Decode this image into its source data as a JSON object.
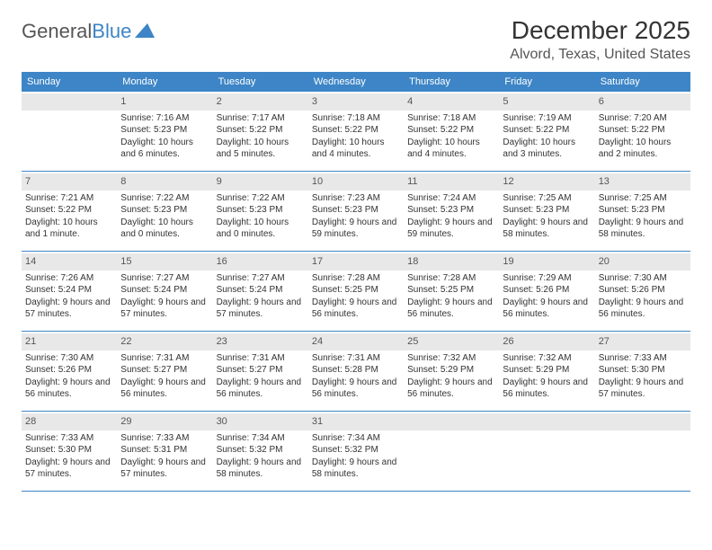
{
  "logo": {
    "text1": "General",
    "text2": "Blue"
  },
  "title": "December 2025",
  "location": "Alvord, Texas, United States",
  "colors": {
    "header_bg": "#3d85c6",
    "header_text": "#ffffff",
    "daynum_bg": "#e8e8e8",
    "border": "#3d85c6",
    "text": "#333333"
  },
  "weekdays": [
    "Sunday",
    "Monday",
    "Tuesday",
    "Wednesday",
    "Thursday",
    "Friday",
    "Saturday"
  ],
  "weeks": [
    [
      {
        "n": "",
        "sr": "",
        "ss": "",
        "dl": ""
      },
      {
        "n": "1",
        "sr": "Sunrise: 7:16 AM",
        "ss": "Sunset: 5:23 PM",
        "dl": "Daylight: 10 hours and 6 minutes."
      },
      {
        "n": "2",
        "sr": "Sunrise: 7:17 AM",
        "ss": "Sunset: 5:22 PM",
        "dl": "Daylight: 10 hours and 5 minutes."
      },
      {
        "n": "3",
        "sr": "Sunrise: 7:18 AM",
        "ss": "Sunset: 5:22 PM",
        "dl": "Daylight: 10 hours and 4 minutes."
      },
      {
        "n": "4",
        "sr": "Sunrise: 7:18 AM",
        "ss": "Sunset: 5:22 PM",
        "dl": "Daylight: 10 hours and 4 minutes."
      },
      {
        "n": "5",
        "sr": "Sunrise: 7:19 AM",
        "ss": "Sunset: 5:22 PM",
        "dl": "Daylight: 10 hours and 3 minutes."
      },
      {
        "n": "6",
        "sr": "Sunrise: 7:20 AM",
        "ss": "Sunset: 5:22 PM",
        "dl": "Daylight: 10 hours and 2 minutes."
      }
    ],
    [
      {
        "n": "7",
        "sr": "Sunrise: 7:21 AM",
        "ss": "Sunset: 5:22 PM",
        "dl": "Daylight: 10 hours and 1 minute."
      },
      {
        "n": "8",
        "sr": "Sunrise: 7:22 AM",
        "ss": "Sunset: 5:23 PM",
        "dl": "Daylight: 10 hours and 0 minutes."
      },
      {
        "n": "9",
        "sr": "Sunrise: 7:22 AM",
        "ss": "Sunset: 5:23 PM",
        "dl": "Daylight: 10 hours and 0 minutes."
      },
      {
        "n": "10",
        "sr": "Sunrise: 7:23 AM",
        "ss": "Sunset: 5:23 PM",
        "dl": "Daylight: 9 hours and 59 minutes."
      },
      {
        "n": "11",
        "sr": "Sunrise: 7:24 AM",
        "ss": "Sunset: 5:23 PM",
        "dl": "Daylight: 9 hours and 59 minutes."
      },
      {
        "n": "12",
        "sr": "Sunrise: 7:25 AM",
        "ss": "Sunset: 5:23 PM",
        "dl": "Daylight: 9 hours and 58 minutes."
      },
      {
        "n": "13",
        "sr": "Sunrise: 7:25 AM",
        "ss": "Sunset: 5:23 PM",
        "dl": "Daylight: 9 hours and 58 minutes."
      }
    ],
    [
      {
        "n": "14",
        "sr": "Sunrise: 7:26 AM",
        "ss": "Sunset: 5:24 PM",
        "dl": "Daylight: 9 hours and 57 minutes."
      },
      {
        "n": "15",
        "sr": "Sunrise: 7:27 AM",
        "ss": "Sunset: 5:24 PM",
        "dl": "Daylight: 9 hours and 57 minutes."
      },
      {
        "n": "16",
        "sr": "Sunrise: 7:27 AM",
        "ss": "Sunset: 5:24 PM",
        "dl": "Daylight: 9 hours and 57 minutes."
      },
      {
        "n": "17",
        "sr": "Sunrise: 7:28 AM",
        "ss": "Sunset: 5:25 PM",
        "dl": "Daylight: 9 hours and 56 minutes."
      },
      {
        "n": "18",
        "sr": "Sunrise: 7:28 AM",
        "ss": "Sunset: 5:25 PM",
        "dl": "Daylight: 9 hours and 56 minutes."
      },
      {
        "n": "19",
        "sr": "Sunrise: 7:29 AM",
        "ss": "Sunset: 5:26 PM",
        "dl": "Daylight: 9 hours and 56 minutes."
      },
      {
        "n": "20",
        "sr": "Sunrise: 7:30 AM",
        "ss": "Sunset: 5:26 PM",
        "dl": "Daylight: 9 hours and 56 minutes."
      }
    ],
    [
      {
        "n": "21",
        "sr": "Sunrise: 7:30 AM",
        "ss": "Sunset: 5:26 PM",
        "dl": "Daylight: 9 hours and 56 minutes."
      },
      {
        "n": "22",
        "sr": "Sunrise: 7:31 AM",
        "ss": "Sunset: 5:27 PM",
        "dl": "Daylight: 9 hours and 56 minutes."
      },
      {
        "n": "23",
        "sr": "Sunrise: 7:31 AM",
        "ss": "Sunset: 5:27 PM",
        "dl": "Daylight: 9 hours and 56 minutes."
      },
      {
        "n": "24",
        "sr": "Sunrise: 7:31 AM",
        "ss": "Sunset: 5:28 PM",
        "dl": "Daylight: 9 hours and 56 minutes."
      },
      {
        "n": "25",
        "sr": "Sunrise: 7:32 AM",
        "ss": "Sunset: 5:29 PM",
        "dl": "Daylight: 9 hours and 56 minutes."
      },
      {
        "n": "26",
        "sr": "Sunrise: 7:32 AM",
        "ss": "Sunset: 5:29 PM",
        "dl": "Daylight: 9 hours and 56 minutes."
      },
      {
        "n": "27",
        "sr": "Sunrise: 7:33 AM",
        "ss": "Sunset: 5:30 PM",
        "dl": "Daylight: 9 hours and 57 minutes."
      }
    ],
    [
      {
        "n": "28",
        "sr": "Sunrise: 7:33 AM",
        "ss": "Sunset: 5:30 PM",
        "dl": "Daylight: 9 hours and 57 minutes."
      },
      {
        "n": "29",
        "sr": "Sunrise: 7:33 AM",
        "ss": "Sunset: 5:31 PM",
        "dl": "Daylight: 9 hours and 57 minutes."
      },
      {
        "n": "30",
        "sr": "Sunrise: 7:34 AM",
        "ss": "Sunset: 5:32 PM",
        "dl": "Daylight: 9 hours and 58 minutes."
      },
      {
        "n": "31",
        "sr": "Sunrise: 7:34 AM",
        "ss": "Sunset: 5:32 PM",
        "dl": "Daylight: 9 hours and 58 minutes."
      },
      {
        "n": "",
        "sr": "",
        "ss": "",
        "dl": ""
      },
      {
        "n": "",
        "sr": "",
        "ss": "",
        "dl": ""
      },
      {
        "n": "",
        "sr": "",
        "ss": "",
        "dl": ""
      }
    ]
  ]
}
